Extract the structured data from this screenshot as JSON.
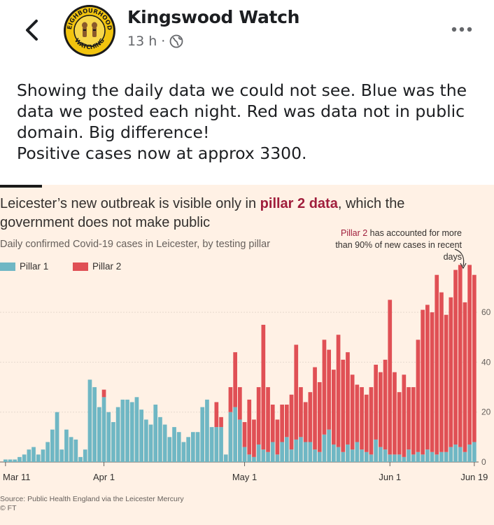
{
  "header": {
    "page_name": "Kingswood Watch",
    "timestamp": "13 h",
    "separator": "·",
    "visibility_icon": "globe-icon",
    "logo_top_text": "NEIGHBOURHOODS",
    "logo_bottom_text": "WATCHING"
  },
  "post": {
    "lines": [
      "Showing the daily data we could not see. Blue was the",
      "data we posted each night. Red was data not in public",
      "domain. Big difference!",
      "Positive cases now at approx 3300."
    ]
  },
  "colors": {
    "pillar1": "#6fb7c4",
    "pillar2": "#e05055",
    "background": "#fff1e5",
    "accent": "#a01e3c"
  },
  "chart_data": {
    "type": "bar",
    "stacked": true,
    "title_part1": "Leicester’s new outbreak is visible only in ",
    "title_highlight": "pillar 2 data",
    "title_part2": ", which the government does not make public",
    "subtitle": "Daily confirmed Covid-19 cases in Leicester, by testing pillar",
    "legend": [
      "Pillar 1",
      "Pillar 2"
    ],
    "annotation_highlight": "Pillar 2",
    "annotation_rest": " has accounted for more than 90% of new cases in recent days",
    "source_line1": "Source: Public Health England via the Leicester Mercury",
    "source_line2": "© FT",
    "x_tick_labels": [
      "Mar 11",
      "Apr 1",
      "May 1",
      "Jun 1",
      "Jun 19"
    ],
    "x_tick_index": [
      0,
      21,
      51,
      82,
      100
    ],
    "y_ticks": [
      0,
      20,
      40,
      60
    ],
    "ylim": [
      0,
      78
    ],
    "y_axis_side": "right",
    "grid": true,
    "start_label": "Mar 11",
    "series": [
      {
        "name": "Pillar 1",
        "values": [
          1,
          1,
          1,
          2,
          3,
          5,
          6,
          3,
          5,
          8,
          13,
          20,
          5,
          13,
          10,
          9,
          2,
          5,
          33,
          30,
          22,
          26,
          20,
          16,
          22,
          25,
          25,
          24,
          26,
          21,
          17,
          15,
          23,
          18,
          15,
          10,
          14,
          12,
          8,
          10,
          12,
          12,
          22,
          25,
          14,
          14,
          14,
          3,
          20,
          22,
          17,
          6,
          3,
          2,
          7,
          5,
          4,
          8,
          3,
          8,
          10,
          5,
          9,
          10,
          8,
          8,
          5,
          4,
          11,
          13,
          7,
          6,
          4,
          7,
          5,
          8,
          5,
          4,
          3,
          9,
          6,
          5,
          3,
          3,
          3,
          2,
          5,
          3,
          4,
          3,
          5,
          4,
          3,
          4,
          4,
          6,
          7,
          6,
          4,
          7,
          8
        ]
      },
      {
        "name": "Pillar 2",
        "values": [
          0,
          0,
          0,
          0,
          0,
          0,
          0,
          0,
          0,
          0,
          0,
          0,
          0,
          0,
          0,
          0,
          0,
          0,
          0,
          0,
          0,
          3,
          0,
          0,
          0,
          0,
          0,
          0,
          0,
          0,
          0,
          0,
          0,
          0,
          0,
          0,
          0,
          0,
          0,
          0,
          0,
          0,
          0,
          0,
          0,
          10,
          4,
          0,
          10,
          22,
          13,
          10,
          22,
          15,
          23,
          50,
          26,
          15,
          14,
          15,
          13,
          22,
          38,
          20,
          16,
          20,
          33,
          28,
          38,
          32,
          30,
          45,
          37,
          37,
          30,
          23,
          25,
          23,
          27,
          30,
          30,
          36,
          62,
          33,
          25,
          33,
          25,
          27,
          45,
          58,
          58,
          56,
          72,
          64,
          55,
          60,
          70,
          73,
          60,
          72,
          67
        ]
      }
    ]
  }
}
